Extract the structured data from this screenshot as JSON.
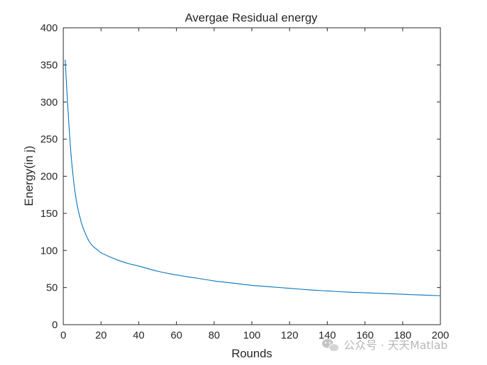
{
  "chart_data": {
    "type": "line",
    "title": "Avergae Residual energy",
    "xlabel": "Rounds",
    "ylabel": "Energy(in j)",
    "xlim": [
      0,
      200
    ],
    "ylim": [
      0,
      400
    ],
    "xticks": [
      0,
      20,
      40,
      60,
      80,
      100,
      120,
      140,
      160,
      180,
      200
    ],
    "yticks": [
      0,
      50,
      100,
      150,
      200,
      250,
      300,
      350,
      400
    ],
    "grid": false,
    "series": [
      {
        "color": "#0072bd",
        "x": [
          1,
          2,
          3,
          4,
          5,
          6,
          7,
          8,
          9,
          10,
          12,
          14,
          16,
          18,
          20,
          25,
          30,
          35,
          40,
          50,
          60,
          70,
          80,
          90,
          100,
          110,
          120,
          130,
          140,
          150,
          160,
          170,
          180,
          190,
          200
        ],
        "y": [
          357,
          310,
          268,
          232,
          205,
          183,
          166,
          153,
          143,
          134,
          121,
          111,
          105,
          101,
          97,
          91,
          86,
          82,
          79,
          72,
          67,
          63,
          59,
          56,
          53,
          51,
          49,
          47,
          45.5,
          44,
          43,
          42,
          41,
          40,
          39
        ]
      }
    ]
  },
  "watermark": {
    "icon": "wechat-icon",
    "text": "公众号 · 天天Matlab"
  }
}
